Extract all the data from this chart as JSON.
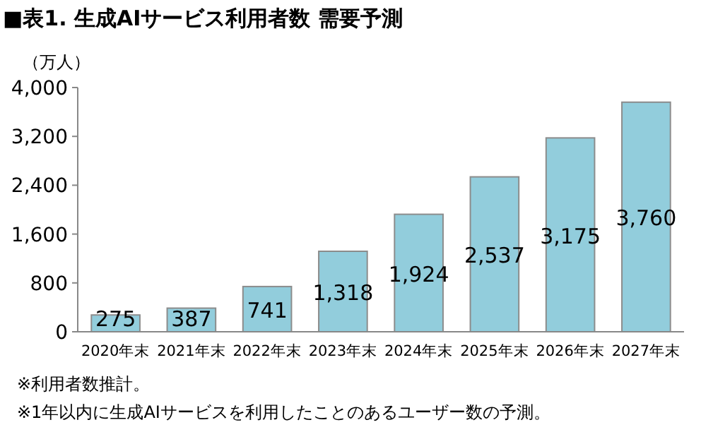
{
  "chart_data": {
    "type": "bar",
    "title": "■表1. 生成AIサービス利用者数 需要予測",
    "ylabel": "（万人）",
    "categories": [
      "2020年末",
      "2021年末",
      "2022年末",
      "2023年末",
      "2024年末",
      "2025年末",
      "2026年末",
      "2027年末"
    ],
    "values": [
      275,
      387,
      741,
      1318,
      1924,
      2537,
      3175,
      3760
    ],
    "color": "#92cddc",
    "ylim": [
      0,
      4000
    ],
    "yticks": [
      0,
      {
        "value": 800,
        "label": "800"
      },
      {
        "value": 1600,
        "label": "1,600"
      },
      {
        "value": 2400,
        "label": "2,400"
      },
      {
        "value": 3200,
        "label": "3,200"
      },
      {
        "value": 4000,
        "label": "4,000"
      }
    ],
    "value_labels": [
      "275",
      "387",
      "741",
      "1,318",
      "1,924",
      "2,537",
      "3,175",
      "3,760"
    ],
    "annotations": [
      "※利用者数推計。",
      "※1年以内に生成AIサービスを利用したことのあるユーザー数の予測。"
    ]
  }
}
